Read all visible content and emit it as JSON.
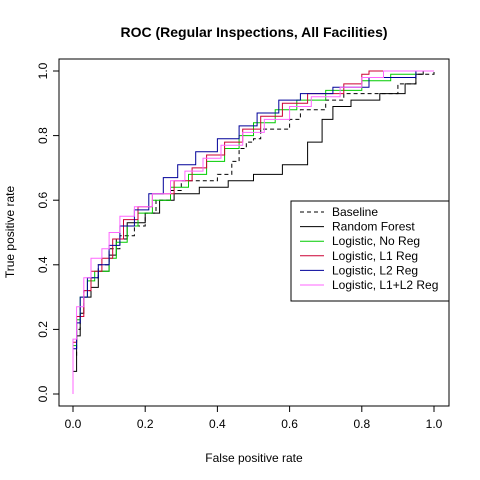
{
  "chart_data": {
    "type": "line",
    "title": "ROC (Regular Inspections, All Facilities)",
    "xlabel": "False positive rate",
    "ylabel": "True positive rate",
    "xlim": [
      0,
      1
    ],
    "ylim": [
      0,
      1
    ],
    "x_ticks": [
      "0.0",
      "0.2",
      "0.4",
      "0.6",
      "0.8",
      "1.0"
    ],
    "y_ticks": [
      "0.0",
      "0.2",
      "0.4",
      "0.6",
      "0.8",
      "1.0"
    ],
    "legend_position": "right",
    "series": [
      {
        "name": "Baseline",
        "color": "#000000",
        "dash": "dashed",
        "points": [
          [
            0,
            0
          ],
          [
            0,
            0.12
          ],
          [
            0.01,
            0.12
          ],
          [
            0.01,
            0.2
          ],
          [
            0.02,
            0.2
          ],
          [
            0.02,
            0.27
          ],
          [
            0.03,
            0.27
          ],
          [
            0.03,
            0.32
          ],
          [
            0.05,
            0.32
          ],
          [
            0.05,
            0.36
          ],
          [
            0.07,
            0.36
          ],
          [
            0.07,
            0.4
          ],
          [
            0.1,
            0.4
          ],
          [
            0.1,
            0.45
          ],
          [
            0.13,
            0.45
          ],
          [
            0.13,
            0.49
          ],
          [
            0.17,
            0.49
          ],
          [
            0.17,
            0.52
          ],
          [
            0.2,
            0.52
          ],
          [
            0.2,
            0.56
          ],
          [
            0.23,
            0.56
          ],
          [
            0.23,
            0.6
          ],
          [
            0.27,
            0.6
          ],
          [
            0.27,
            0.63
          ],
          [
            0.3,
            0.63
          ],
          [
            0.3,
            0.66
          ],
          [
            0.4,
            0.66
          ],
          [
            0.4,
            0.68
          ],
          [
            0.44,
            0.68
          ],
          [
            0.44,
            0.72
          ],
          [
            0.46,
            0.72
          ],
          [
            0.46,
            0.76
          ],
          [
            0.48,
            0.76
          ],
          [
            0.48,
            0.78
          ],
          [
            0.5,
            0.78
          ],
          [
            0.5,
            0.79
          ],
          [
            0.52,
            0.79
          ],
          [
            0.52,
            0.82
          ],
          [
            0.6,
            0.82
          ],
          [
            0.6,
            0.85
          ],
          [
            0.63,
            0.85
          ],
          [
            0.63,
            0.88
          ],
          [
            0.7,
            0.88
          ],
          [
            0.7,
            0.91
          ],
          [
            0.75,
            0.91
          ],
          [
            0.75,
            0.93
          ],
          [
            0.9,
            0.93
          ],
          [
            0.9,
            0.96
          ],
          [
            0.95,
            0.96
          ],
          [
            0.95,
            0.99
          ],
          [
            1,
            0.99
          ],
          [
            1,
            1
          ]
        ]
      },
      {
        "name": "Random Forest",
        "color": "#000000",
        "dash": "solid",
        "points": [
          [
            0,
            0
          ],
          [
            0,
            0.07
          ],
          [
            0.01,
            0.07
          ],
          [
            0.01,
            0.18
          ],
          [
            0.02,
            0.18
          ],
          [
            0.02,
            0.25
          ],
          [
            0.03,
            0.25
          ],
          [
            0.03,
            0.3
          ],
          [
            0.05,
            0.3
          ],
          [
            0.05,
            0.33
          ],
          [
            0.07,
            0.33
          ],
          [
            0.07,
            0.38
          ],
          [
            0.1,
            0.38
          ],
          [
            0.1,
            0.43
          ],
          [
            0.12,
            0.43
          ],
          [
            0.12,
            0.48
          ],
          [
            0.15,
            0.48
          ],
          [
            0.15,
            0.53
          ],
          [
            0.2,
            0.53
          ],
          [
            0.2,
            0.56
          ],
          [
            0.24,
            0.56
          ],
          [
            0.24,
            0.6
          ],
          [
            0.28,
            0.6
          ],
          [
            0.28,
            0.62
          ],
          [
            0.35,
            0.62
          ],
          [
            0.35,
            0.64
          ],
          [
            0.43,
            0.64
          ],
          [
            0.43,
            0.66
          ],
          [
            0.5,
            0.66
          ],
          [
            0.5,
            0.68
          ],
          [
            0.58,
            0.68
          ],
          [
            0.58,
            0.71
          ],
          [
            0.65,
            0.71
          ],
          [
            0.65,
            0.78
          ],
          [
            0.69,
            0.78
          ],
          [
            0.69,
            0.85
          ],
          [
            0.72,
            0.85
          ],
          [
            0.72,
            0.89
          ],
          [
            0.77,
            0.89
          ],
          [
            0.77,
            0.91
          ],
          [
            0.85,
            0.91
          ],
          [
            0.85,
            0.93
          ],
          [
            0.92,
            0.93
          ],
          [
            0.92,
            0.96
          ],
          [
            0.95,
            0.96
          ],
          [
            0.95,
            0.99
          ],
          [
            0.97,
            0.99
          ],
          [
            0.97,
            1
          ],
          [
            1,
            1
          ]
        ]
      },
      {
        "name": "Logistic, No Reg",
        "color": "#00cc00",
        "dash": "solid",
        "points": [
          [
            0,
            0
          ],
          [
            0,
            0.15
          ],
          [
            0.01,
            0.15
          ],
          [
            0.01,
            0.23
          ],
          [
            0.02,
            0.23
          ],
          [
            0.02,
            0.3
          ],
          [
            0.04,
            0.3
          ],
          [
            0.04,
            0.35
          ],
          [
            0.06,
            0.35
          ],
          [
            0.06,
            0.38
          ],
          [
            0.1,
            0.38
          ],
          [
            0.1,
            0.42
          ],
          [
            0.12,
            0.42
          ],
          [
            0.12,
            0.47
          ],
          [
            0.15,
            0.47
          ],
          [
            0.15,
            0.52
          ],
          [
            0.18,
            0.52
          ],
          [
            0.18,
            0.56
          ],
          [
            0.22,
            0.56
          ],
          [
            0.22,
            0.6
          ],
          [
            0.27,
            0.6
          ],
          [
            0.27,
            0.64
          ],
          [
            0.32,
            0.64
          ],
          [
            0.32,
            0.68
          ],
          [
            0.37,
            0.68
          ],
          [
            0.37,
            0.72
          ],
          [
            0.42,
            0.72
          ],
          [
            0.42,
            0.76
          ],
          [
            0.46,
            0.76
          ],
          [
            0.46,
            0.8
          ],
          [
            0.5,
            0.8
          ],
          [
            0.5,
            0.84
          ],
          [
            0.56,
            0.84
          ],
          [
            0.56,
            0.88
          ],
          [
            0.62,
            0.88
          ],
          [
            0.62,
            0.91
          ],
          [
            0.7,
            0.91
          ],
          [
            0.7,
            0.94
          ],
          [
            0.8,
            0.94
          ],
          [
            0.8,
            0.97
          ],
          [
            0.88,
            0.97
          ],
          [
            0.88,
            0.99
          ],
          [
            0.95,
            0.99
          ],
          [
            0.95,
            1
          ],
          [
            1,
            1
          ]
        ]
      },
      {
        "name": "Logistic, L1 Reg",
        "color": "#cc0033",
        "dash": "solid",
        "points": [
          [
            0,
            0
          ],
          [
            0,
            0.16
          ],
          [
            0.01,
            0.16
          ],
          [
            0.01,
            0.24
          ],
          [
            0.03,
            0.24
          ],
          [
            0.03,
            0.32
          ],
          [
            0.05,
            0.32
          ],
          [
            0.05,
            0.38
          ],
          [
            0.08,
            0.38
          ],
          [
            0.08,
            0.42
          ],
          [
            0.11,
            0.42
          ],
          [
            0.11,
            0.48
          ],
          [
            0.14,
            0.48
          ],
          [
            0.14,
            0.54
          ],
          [
            0.18,
            0.54
          ],
          [
            0.18,
            0.58
          ],
          [
            0.22,
            0.58
          ],
          [
            0.22,
            0.62
          ],
          [
            0.28,
            0.62
          ],
          [
            0.28,
            0.66
          ],
          [
            0.33,
            0.66
          ],
          [
            0.33,
            0.7
          ],
          [
            0.37,
            0.7
          ],
          [
            0.37,
            0.74
          ],
          [
            0.42,
            0.74
          ],
          [
            0.42,
            0.78
          ],
          [
            0.47,
            0.78
          ],
          [
            0.47,
            0.82
          ],
          [
            0.52,
            0.82
          ],
          [
            0.52,
            0.86
          ],
          [
            0.58,
            0.86
          ],
          [
            0.58,
            0.9
          ],
          [
            0.65,
            0.9
          ],
          [
            0.65,
            0.93
          ],
          [
            0.75,
            0.93
          ],
          [
            0.75,
            0.96
          ],
          [
            0.8,
            0.96
          ],
          [
            0.8,
            0.99
          ],
          [
            0.82,
            0.99
          ],
          [
            0.82,
            1
          ],
          [
            1,
            1
          ]
        ]
      },
      {
        "name": "Logistic, L2 Reg",
        "color": "#000099",
        "dash": "solid",
        "points": [
          [
            0,
            0
          ],
          [
            0,
            0.14
          ],
          [
            0.01,
            0.14
          ],
          [
            0.01,
            0.22
          ],
          [
            0.02,
            0.22
          ],
          [
            0.02,
            0.3
          ],
          [
            0.04,
            0.3
          ],
          [
            0.04,
            0.36
          ],
          [
            0.07,
            0.36
          ],
          [
            0.07,
            0.4
          ],
          [
            0.1,
            0.4
          ],
          [
            0.1,
            0.46
          ],
          [
            0.13,
            0.46
          ],
          [
            0.13,
            0.52
          ],
          [
            0.17,
            0.52
          ],
          [
            0.17,
            0.57
          ],
          [
            0.21,
            0.57
          ],
          [
            0.21,
            0.62
          ],
          [
            0.25,
            0.62
          ],
          [
            0.25,
            0.67
          ],
          [
            0.29,
            0.67
          ],
          [
            0.29,
            0.71
          ],
          [
            0.34,
            0.71
          ],
          [
            0.34,
            0.75
          ],
          [
            0.4,
            0.75
          ],
          [
            0.4,
            0.79
          ],
          [
            0.46,
            0.79
          ],
          [
            0.46,
            0.83
          ],
          [
            0.51,
            0.83
          ],
          [
            0.51,
            0.87
          ],
          [
            0.57,
            0.87
          ],
          [
            0.57,
            0.91
          ],
          [
            0.63,
            0.91
          ],
          [
            0.63,
            0.93
          ],
          [
            0.72,
            0.93
          ],
          [
            0.72,
            0.95
          ],
          [
            0.82,
            0.95
          ],
          [
            0.82,
            0.98
          ],
          [
            0.95,
            0.98
          ],
          [
            0.95,
            1
          ],
          [
            1,
            1
          ]
        ]
      },
      {
        "name": "Logistic, L1+L2 Reg",
        "color": "#ff66ff",
        "dash": "solid",
        "points": [
          [
            0,
            0
          ],
          [
            0,
            0.17
          ],
          [
            0.01,
            0.17
          ],
          [
            0.01,
            0.27
          ],
          [
            0.03,
            0.27
          ],
          [
            0.03,
            0.36
          ],
          [
            0.05,
            0.36
          ],
          [
            0.05,
            0.42
          ],
          [
            0.08,
            0.42
          ],
          [
            0.08,
            0.45
          ],
          [
            0.1,
            0.45
          ],
          [
            0.1,
            0.5
          ],
          [
            0.13,
            0.5
          ],
          [
            0.13,
            0.55
          ],
          [
            0.17,
            0.55
          ],
          [
            0.17,
            0.58
          ],
          [
            0.22,
            0.58
          ],
          [
            0.22,
            0.62
          ],
          [
            0.27,
            0.62
          ],
          [
            0.27,
            0.66
          ],
          [
            0.31,
            0.66
          ],
          [
            0.31,
            0.69
          ],
          [
            0.36,
            0.69
          ],
          [
            0.36,
            0.73
          ],
          [
            0.41,
            0.73
          ],
          [
            0.41,
            0.77
          ],
          [
            0.47,
            0.77
          ],
          [
            0.47,
            0.81
          ],
          [
            0.53,
            0.81
          ],
          [
            0.53,
            0.85
          ],
          [
            0.6,
            0.85
          ],
          [
            0.6,
            0.89
          ],
          [
            0.66,
            0.89
          ],
          [
            0.66,
            0.92
          ],
          [
            0.74,
            0.92
          ],
          [
            0.74,
            0.95
          ],
          [
            0.8,
            0.95
          ],
          [
            0.8,
            0.98
          ],
          [
            0.86,
            0.98
          ],
          [
            0.86,
            1
          ],
          [
            1,
            1
          ]
        ]
      }
    ]
  }
}
